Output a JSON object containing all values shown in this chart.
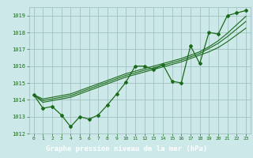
{
  "hours": [
    0,
    1,
    2,
    3,
    4,
    5,
    6,
    7,
    8,
    9,
    10,
    11,
    12,
    13,
    14,
    15,
    16,
    17,
    18,
    19,
    20,
    21,
    22,
    23
  ],
  "main_series": [
    1014.3,
    1013.5,
    1013.6,
    1013.1,
    1012.4,
    1013.0,
    1012.85,
    1013.1,
    1013.7,
    1014.35,
    1015.05,
    1016.0,
    1016.0,
    1015.8,
    1016.1,
    1015.1,
    1015.0,
    1017.2,
    1016.15,
    1018.0,
    1017.9,
    1019.0,
    1019.15,
    1019.3
  ],
  "trend1": [
    1014.3,
    1013.85,
    1013.95,
    1014.05,
    1014.15,
    1014.35,
    1014.55,
    1014.75,
    1014.95,
    1015.15,
    1015.35,
    1015.5,
    1015.65,
    1015.8,
    1015.95,
    1016.1,
    1016.25,
    1016.45,
    1016.65,
    1016.85,
    1017.1,
    1017.45,
    1017.85,
    1018.25
  ],
  "trend2": [
    1014.3,
    1013.95,
    1014.05,
    1014.15,
    1014.25,
    1014.45,
    1014.65,
    1014.85,
    1015.05,
    1015.25,
    1015.45,
    1015.6,
    1015.75,
    1015.9,
    1016.05,
    1016.2,
    1016.35,
    1016.55,
    1016.75,
    1017.05,
    1017.35,
    1017.75,
    1018.2,
    1018.65
  ],
  "trend3": [
    1014.3,
    1014.05,
    1014.15,
    1014.25,
    1014.35,
    1014.55,
    1014.75,
    1014.95,
    1015.15,
    1015.35,
    1015.55,
    1015.7,
    1015.85,
    1016.0,
    1016.15,
    1016.3,
    1016.45,
    1016.65,
    1016.85,
    1017.15,
    1017.5,
    1017.95,
    1018.45,
    1018.95
  ],
  "line_color": "#1a6b1a",
  "bg_color": "#cce8e8",
  "grid_color": "#99bbbb",
  "xlabel": "Graphe pression niveau de la mer (hPa)",
  "xlabel_bg": "#1a5c1a",
  "xlabel_fg": "#ffffff",
  "ylim": [
    1012,
    1019.5
  ],
  "xlim": [
    -0.5,
    23.5
  ],
  "yticks": [
    1012,
    1013,
    1014,
    1015,
    1016,
    1017,
    1018,
    1019
  ],
  "xticks": [
    0,
    1,
    2,
    3,
    4,
    5,
    6,
    7,
    8,
    9,
    10,
    11,
    12,
    13,
    14,
    15,
    16,
    17,
    18,
    19,
    20,
    21,
    22,
    23
  ]
}
